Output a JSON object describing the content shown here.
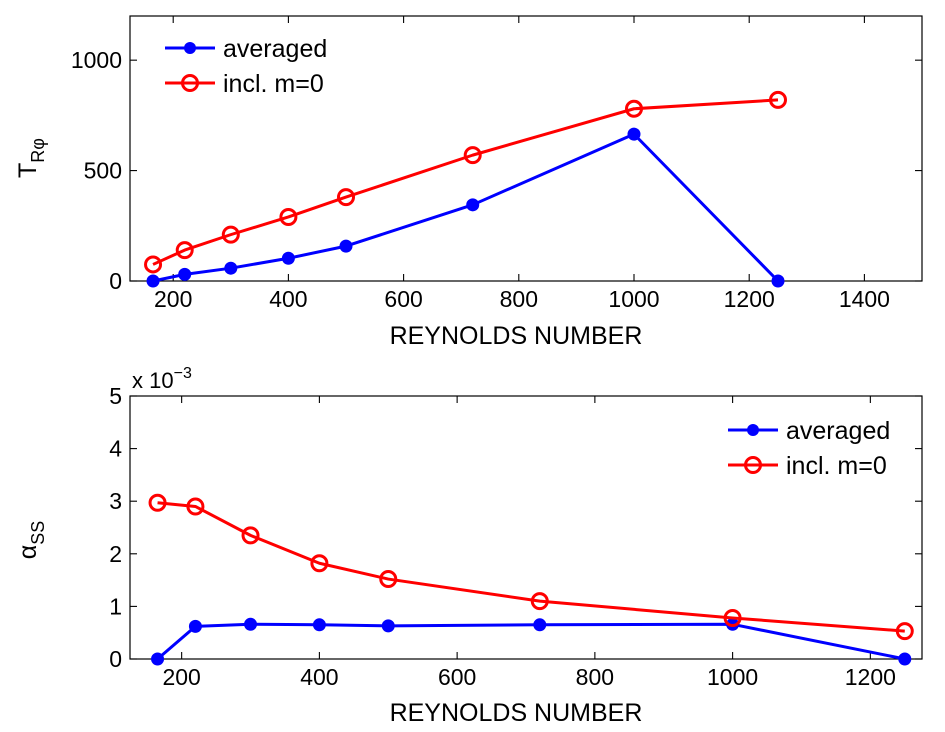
{
  "colors": {
    "averaged": "#0000ff",
    "incl": "#ff0000",
    "axis": "#000000",
    "background": "#ffffff"
  },
  "chart_data": [
    {
      "type": "line",
      "xlabel": "REYNOLDS NUMBER",
      "ylabel_main": "T",
      "ylabel_sub": "Rφ",
      "xlim": [
        125,
        1500
      ],
      "ylim": [
        0,
        1200
      ],
      "xticks": [
        200,
        400,
        600,
        800,
        1000,
        1200,
        1400
      ],
      "yticks": [
        0,
        500,
        1000
      ],
      "legend_position": "top-left",
      "grid": false,
      "series": [
        {
          "name": "averaged",
          "marker": "filled-circle",
          "x": [
            165,
            220,
            300,
            400,
            500,
            720,
            1000,
            1250
          ],
          "y": [
            0,
            30,
            58,
            103,
            158,
            345,
            665,
            0
          ]
        },
        {
          "name": "incl. m=0",
          "marker": "open-circle",
          "x": [
            165,
            220,
            300,
            400,
            500,
            720,
            1000,
            1250
          ],
          "y": [
            75,
            140,
            210,
            290,
            380,
            570,
            780,
            820
          ]
        }
      ]
    },
    {
      "type": "line",
      "xlabel": "REYNOLDS NUMBER",
      "ylabel_main": "α",
      "ylabel_sub": "SS",
      "scale_label": "x 10",
      "scale_exponent": "−3",
      "xlim": [
        125,
        1275
      ],
      "ylim": [
        0,
        5
      ],
      "xticks": [
        200,
        400,
        600,
        800,
        1000,
        1200
      ],
      "yticks": [
        0,
        1,
        2,
        3,
        4,
        5
      ],
      "legend_position": "top-right",
      "grid": false,
      "series": [
        {
          "name": "averaged",
          "marker": "filled-circle",
          "x": [
            165,
            220,
            300,
            400,
            500,
            720,
            1000,
            1250
          ],
          "y": [
            0,
            0.62,
            0.66,
            0.65,
            0.63,
            0.65,
            0.66,
            0
          ]
        },
        {
          "name": "incl. m=0",
          "marker": "open-circle",
          "x": [
            165,
            220,
            300,
            400,
            500,
            720,
            1000,
            1250
          ],
          "y": [
            2.97,
            2.9,
            2.35,
            1.82,
            1.52,
            1.1,
            0.78,
            0.53
          ]
        }
      ]
    }
  ]
}
